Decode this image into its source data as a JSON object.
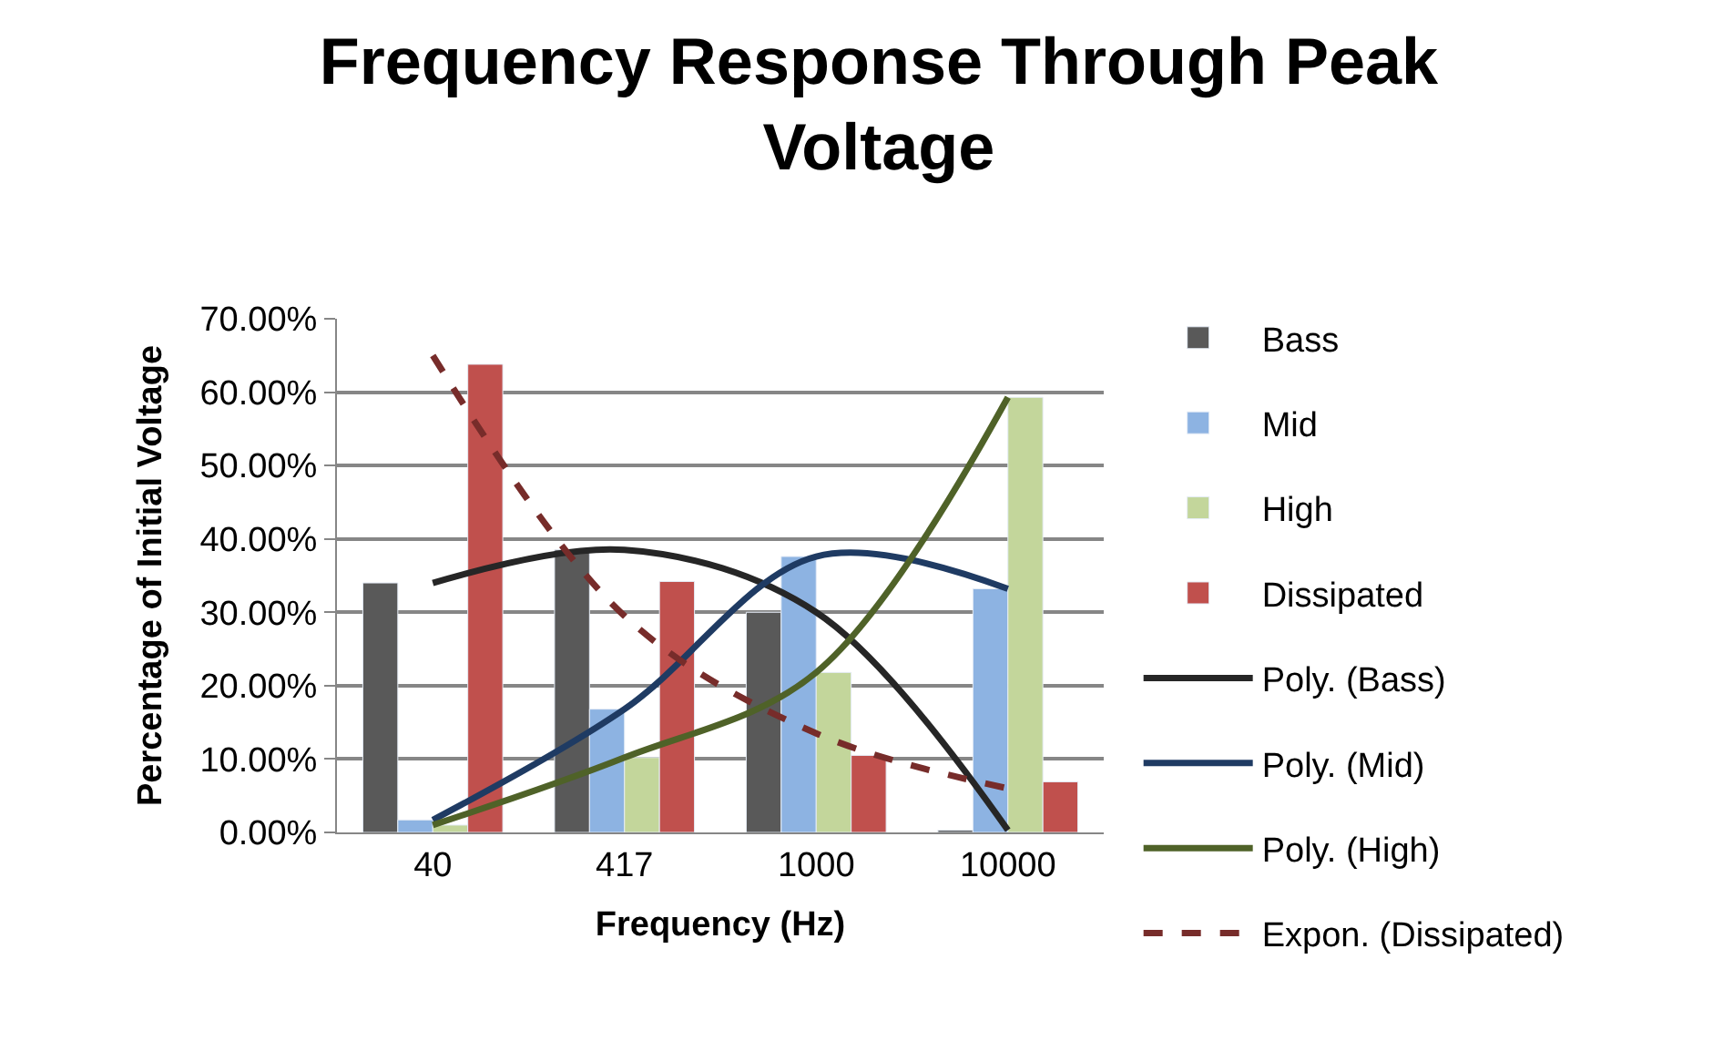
{
  "chart_data": {
    "type": "bar",
    "title": "Frequency Response Through Peak Voltage",
    "xlabel": "Frequency (Hz)",
    "ylabel": "Percentage of Initial Voltage",
    "categories": [
      "40",
      "417",
      "1000",
      "10000"
    ],
    "series": [
      {
        "name": "Bass",
        "color": "#595959",
        "values": [
          34.0,
          38.5,
          30.0,
          0.3
        ]
      },
      {
        "name": "Mid",
        "color": "#8db3e2",
        "values": [
          1.7,
          16.8,
          37.6,
          33.2
        ]
      },
      {
        "name": "High",
        "color": "#c3d69b",
        "values": [
          1.0,
          10.2,
          21.8,
          59.3
        ]
      },
      {
        "name": "Dissipated",
        "color": "#c0504d",
        "values": [
          63.8,
          34.2,
          10.5,
          6.9
        ]
      },
      {
        "name": "Poly. (Bass)",
        "type": "line",
        "color": "#262626",
        "line_style": "solid",
        "values": [
          34.0,
          38.5,
          30.0,
          0.3
        ]
      },
      {
        "name": "Poly. (Mid)",
        "type": "line",
        "color": "#1f3b63",
        "line_style": "solid",
        "values": [
          1.7,
          16.8,
          37.6,
          33.2
        ]
      },
      {
        "name": "Poly. (High)",
        "type": "line",
        "color": "#4f6228",
        "line_style": "solid",
        "values": [
          1.0,
          10.2,
          21.8,
          59.3
        ]
      },
      {
        "name": "Expon. (Dissipated)",
        "type": "line",
        "color": "#772c2a",
        "line_style": "dashed",
        "values": [
          65.0,
          29.5,
          13.5,
          6.0
        ]
      }
    ],
    "ylim": [
      0,
      70
    ],
    "yticks": [
      {
        "value": 0,
        "label": "0.00%"
      },
      {
        "value": 10,
        "label": "10.00%"
      },
      {
        "value": 20,
        "label": "20.00%"
      },
      {
        "value": 30,
        "label": "30.00%"
      },
      {
        "value": 40,
        "label": "40.00%"
      },
      {
        "value": 50,
        "label": "50.00%"
      },
      {
        "value": 60,
        "label": "60.00%"
      },
      {
        "value": 70,
        "label": "70.00%"
      }
    ],
    "grid": "y",
    "legend": "right",
    "marker": "none"
  }
}
